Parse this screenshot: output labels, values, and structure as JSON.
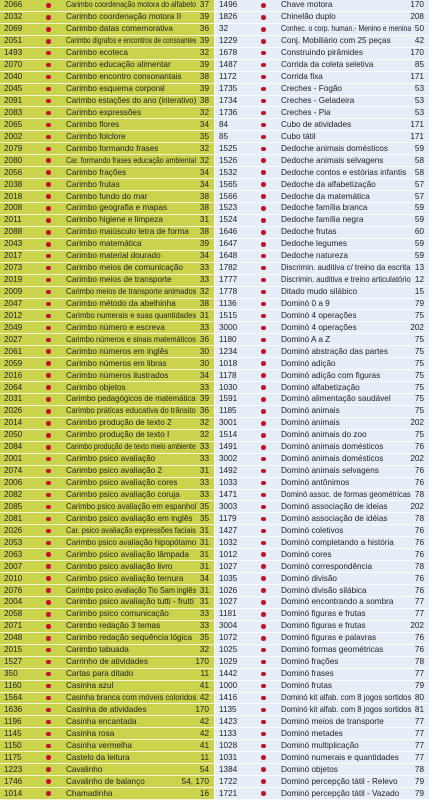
{
  "left": {
    "rows": [
      [
        "2066",
        "Carimbo coordenação motora do alfabeto",
        "37"
      ],
      [
        "2032",
        "Carimbo coordenação motora II",
        "39"
      ],
      [
        "2069",
        "Carimbo datas comemorativa",
        "36"
      ],
      [
        "2051",
        "Carimbo dígrafos e encontros de consoantes",
        "39"
      ],
      [
        "1493",
        "Carimbo ecoteca",
        "32"
      ],
      [
        "2070",
        "Carimbo educação alimentar",
        "39"
      ],
      [
        "2040",
        "Carimbo encontro consonantais",
        "38"
      ],
      [
        "2045",
        "Carimbo esquema corporal",
        "39"
      ],
      [
        "2091",
        "Carimbo estações do ano (interativo)",
        "38"
      ],
      [
        "2083",
        "Carimbo expressões",
        "32"
      ],
      [
        "2065",
        "Carimbo flores",
        "34"
      ],
      [
        "2002",
        "Carimbo folclore",
        "35"
      ],
      [
        "2079",
        "Carimbo formando frases",
        "32"
      ],
      [
        "2080",
        "Car. formando frases educação ambiental",
        "32"
      ],
      [
        "2056",
        "Carimbo frações",
        "34"
      ],
      [
        "2038",
        "Carimbo frutas",
        "34"
      ],
      [
        "2018",
        "Carimbo fundo do mar",
        "38"
      ],
      [
        "2008",
        "Carimbo geografia e mapas",
        "38"
      ],
      [
        "2011",
        "Carimbo higiene e limpeza",
        "31"
      ],
      [
        "2088",
        "Carimbo maiúsculo letra de forma",
        "38"
      ],
      [
        "2043",
        "Carimbo matemática",
        "39"
      ],
      [
        "2017",
        "Carimbo material dourado",
        "34"
      ],
      [
        "2073",
        "Carimbo meios de comunicação",
        "33"
      ],
      [
        "2019",
        "Carimbo meios de transporte",
        "33"
      ],
      [
        "2009",
        "Carimbo meios de transporte animados",
        "32"
      ],
      [
        "2047",
        "Carimbo método da abelhinha",
        "38"
      ],
      [
        "2012",
        "Carimbo numerais e suas quantidades",
        "31"
      ],
      [
        "2049",
        "Carimbo número e escreva",
        "33"
      ],
      [
        "2027",
        "Carimbo números e sinais matemáticos",
        "36"
      ],
      [
        "2061",
        "Carimbo números em inglês",
        "30"
      ],
      [
        "2059",
        "Carimbo números em libras",
        "30"
      ],
      [
        "2016",
        "Carimbo números ilustrados",
        "34"
      ],
      [
        "2064",
        "Carimbo objetos",
        "33"
      ],
      [
        "2031",
        "Carimbo pedagógicos de matemática",
        "39"
      ],
      [
        "2026",
        "Carimbo práticas educativa do trânsito",
        "36"
      ],
      [
        "2014",
        "Carimbo produção de texto 2",
        "32"
      ],
      [
        "2050",
        "Carimbo produção de texto I",
        "32"
      ],
      [
        "2084",
        "Carimbo produção de texto meio ambiente",
        "33"
      ],
      [
        "2001",
        "Carimbo psico avaliação",
        "33"
      ],
      [
        "2074",
        "Carimbo psico avaliação 2",
        "31"
      ],
      [
        "2006",
        "Carimbo psico avaliação cores",
        "33"
      ],
      [
        "2082",
        "Carimbo psico avaliação coruja",
        "33"
      ],
      [
        "2085",
        "Carimbo psico avaliação em espanhol",
        "35"
      ],
      [
        "2081",
        "Carimbo psico avaliação em inglês",
        "35"
      ],
      [
        "2026",
        "Car. psico avaliação expressões faciais",
        "31"
      ],
      [
        "2053",
        "Carimbo psico avaliação hipopótamo",
        "31"
      ],
      [
        "2063",
        "Carimbo psico avaliação lâmpada",
        "31"
      ],
      [
        "2007",
        "Carimbo psico avaliação livro",
        "31"
      ],
      [
        "2010",
        "Carimbo psico avaliação ternura",
        "34"
      ],
      [
        "2076",
        "Carimbo psico avaliação Tio Sam inglês",
        "31"
      ],
      [
        "2004",
        "Carimbo psico avaliação tutti - frutti",
        "31"
      ],
      [
        "2058",
        "Carimbo psico comunicação",
        "33"
      ],
      [
        "2071",
        "Carimbo redação 3 temas",
        "33"
      ],
      [
        "2048",
        "Carimbo redação sequência lógica",
        "35"
      ],
      [
        "2015",
        "Carimbo tabuada",
        "32"
      ],
      [
        "1527",
        "Carrinho de atividades",
        "170"
      ],
      [
        "350",
        "Cartas para ditado",
        "11"
      ],
      [
        "1160",
        "Casinha azul",
        "41"
      ],
      [
        "1564",
        "Casinha branca com móveis coloridos",
        "42"
      ],
      [
        "1636",
        "Casinha de atividades",
        "170"
      ],
      [
        "1196",
        "Casinha encantada",
        "42"
      ],
      [
        "1145",
        "Casinha rosa",
        "42"
      ],
      [
        "1150",
        "Casinha vermelha",
        "41"
      ],
      [
        "1175",
        "Castelo da leitura",
        "11"
      ],
      [
        "1223",
        "Cavalinho",
        "54"
      ],
      [
        "1746",
        "Cavalinho de balanço",
        "54, 170"
      ],
      [
        "1014",
        "Chamadinha",
        "16"
      ]
    ]
  },
  "right": {
    "rows": [
      [
        "1496",
        "Chave motora",
        "170"
      ],
      [
        "1826",
        "Chinelão duplo",
        "208"
      ],
      [
        "32",
        "Conhec. o corp. human.- Menino e menina",
        "50"
      ],
      [
        "1229",
        "Conj. Mobiliário com 25 peças",
        "42"
      ],
      [
        "1678",
        "Construindo pirâmides",
        "170"
      ],
      [
        "1487",
        "Corrida da coleta seletiva",
        "85"
      ],
      [
        "1172",
        "Corrida fixa",
        "171"
      ],
      [
        "1735",
        "Creches - Fogão",
        "53"
      ],
      [
        "1734",
        "Creches - Geladeira",
        "53"
      ],
      [
        "1736",
        "Creches - Pia",
        "53"
      ],
      [
        "84",
        "Cubo de atividades",
        "171"
      ],
      [
        "85",
        "Cubo tátil",
        "171"
      ],
      [
        "1525",
        "Dedoche animais domésticos",
        "59"
      ],
      [
        "1526",
        "Dedoche animais selvagens",
        "58"
      ],
      [
        "1532",
        "Dedoche contos e estórias infantis",
        "58"
      ],
      [
        "1565",
        "Dedoche da alfabetização",
        "57"
      ],
      [
        "1566",
        "Dedoche da matemática",
        "57"
      ],
      [
        "1523",
        "Dedoche família branca",
        "59"
      ],
      [
        "1524",
        "Dedoche família negra",
        "59"
      ],
      [
        "1646",
        "Dedoche frutas",
        "60"
      ],
      [
        "1647",
        "Dedoche legumes",
        "59"
      ],
      [
        "1648",
        "Dedoche natureza",
        "59"
      ],
      [
        "1782",
        "Discrimin. auditiva c/ treino da escrita",
        "13"
      ],
      [
        "1777",
        "Discrimin. auditiva e treino articulatório",
        "12"
      ],
      [
        "1778",
        "Ditado mudo silábico",
        "15"
      ],
      [
        "1136",
        "Dominó 0 a 9",
        "79"
      ],
      [
        "1515",
        "Dominó 4 operações",
        "75"
      ],
      [
        "3000",
        "Dominó 4 operações",
        "202"
      ],
      [
        "1180",
        "Dominó A a Z",
        "75"
      ],
      [
        "1234",
        "Dominó abstração das partes",
        "75"
      ],
      [
        "1018",
        "Dominó adição",
        "75"
      ],
      [
        "1178",
        "Dominó adição com figuras",
        "75"
      ],
      [
        "1030",
        "Dominó alfabetização",
        "75"
      ],
      [
        "1591",
        "Dominó alimentação saudável",
        "75"
      ],
      [
        "1185",
        "Dominó animais",
        "75"
      ],
      [
        "3001",
        "Dominó animais",
        "202"
      ],
      [
        "1514",
        "Dominó animais do zoo",
        "75"
      ],
      [
        "1491",
        "Dominó animais domésticos",
        "76"
      ],
      [
        "3002",
        "Dominó animais domésticos",
        "202"
      ],
      [
        "1492",
        "Dominó animais selvagens",
        "76"
      ],
      [
        "1033",
        "Dominó antônimos",
        "76"
      ],
      [
        "1471",
        "Dominó assoc. de formas geométricas",
        "78"
      ],
      [
        "3003",
        "Dominó associação de ideias",
        "202"
      ],
      [
        "1179",
        "Dominó associação de idéias",
        "78"
      ],
      [
        "1427",
        "Dominó coletivos",
        "76"
      ],
      [
        "1032",
        "Dominó completando a história",
        "76"
      ],
      [
        "1012",
        "Dominó cores",
        "76"
      ],
      [
        "1027",
        "Dominó correspondência",
        "78"
      ],
      [
        "1035",
        "Dominó divisão",
        "76"
      ],
      [
        "1026",
        "Dominó divisão silábica",
        "76"
      ],
      [
        "1027",
        "Dominó encontrando a sombra",
        "77"
      ],
      [
        "1181",
        "Dominó figuras e frutas",
        "77"
      ],
      [
        "3004",
        "Dominó figuras e frutas",
        "202"
      ],
      [
        "1072",
        "Dominó figuras e palavras",
        "76"
      ],
      [
        "1025",
        "Dominó formas geométricas",
        "76"
      ],
      [
        "1029",
        "Dominó frações",
        "78"
      ],
      [
        "1442",
        "Dominó frases",
        "77"
      ],
      [
        "1000",
        "Dominó frutas",
        "79"
      ],
      [
        "1416",
        "Dominó kit alfab. com 8 jogos sortidos",
        "80"
      ],
      [
        "1135",
        "Dominó kit alfab. com 8 jogos sortidos",
        "81"
      ],
      [
        "1423",
        "Dominó meios de transporte",
        "77"
      ],
      [
        "1133",
        "Dominó metades",
        "77"
      ],
      [
        "1028",
        "Dominó multiplicação",
        "77"
      ],
      [
        "1031",
        "Dominó numerais e quantidades",
        "77"
      ],
      [
        "1384",
        "Dominó objetos",
        "78"
      ],
      [
        "1722",
        "Dominó percepção tátil - Relevo",
        "79"
      ],
      [
        "1721",
        "Dominó percepção tátil - Vazado",
        "79"
      ]
    ]
  }
}
